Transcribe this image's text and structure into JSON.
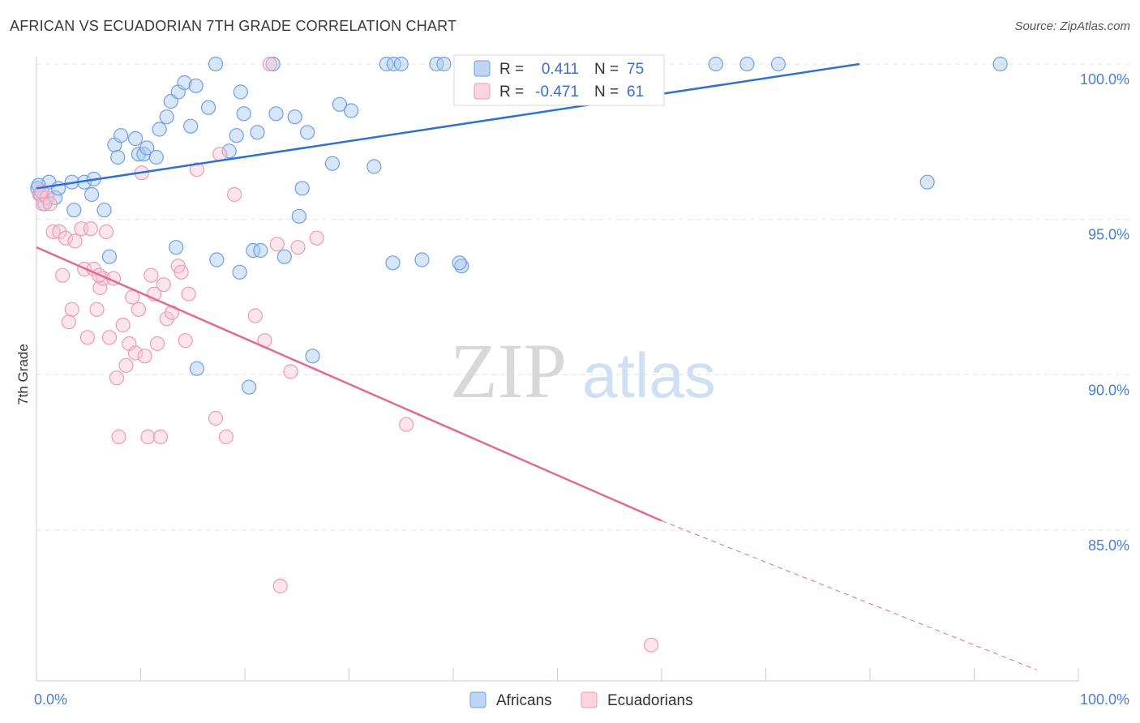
{
  "title": "AFRICAN VS ECUADORIAN 7TH GRADE CORRELATION CHART",
  "source": "Source: ZipAtlas.com",
  "watermark": {
    "zip": "ZIP",
    "atlas": "atlas"
  },
  "chart_data": {
    "type": "scatter",
    "ylabel": "7th Grade",
    "xlim": [
      0,
      100
    ],
    "ylim": [
      80.5,
      100.8
    ],
    "x_ticks": [
      "0.0%",
      "100.0%"
    ],
    "y_ticks": [
      {
        "value": 100,
        "label": "100.0%"
      },
      {
        "value": 95,
        "label": "95.0%"
      },
      {
        "value": 90,
        "label": "90.0%"
      },
      {
        "value": 85,
        "label": "85.0%"
      }
    ],
    "legend": {
      "rows": [
        {
          "r_label": "R =",
          "r_value": "0.411",
          "n_label": "N =",
          "n_value": "75"
        },
        {
          "r_label": "R =",
          "r_value": "-0.471",
          "n_label": "N =",
          "n_value": "61"
        }
      ]
    },
    "series": [
      {
        "name": "Africans",
        "color": "#6f9fe3",
        "line_color": "#2f70d0",
        "trend": {
          "x0": 0,
          "y0": 96.0,
          "x1": 79,
          "y1": 100.0
        },
        "points": [
          [
            0.1,
            96.0
          ],
          [
            0.4,
            95.8
          ],
          [
            0.8,
            95.5
          ],
          [
            1.2,
            96.2
          ],
          [
            1.8,
            95.7
          ],
          [
            2.1,
            96.0
          ],
          [
            3.4,
            96.2
          ],
          [
            3.6,
            95.3
          ],
          [
            4.6,
            96.2
          ],
          [
            5.5,
            96.3
          ],
          [
            5.3,
            95.8
          ],
          [
            6.5,
            95.3
          ],
          [
            7.5,
            97.4
          ],
          [
            7.8,
            97.0
          ],
          [
            8.1,
            97.7
          ],
          [
            9.5,
            97.6
          ],
          [
            9.8,
            97.1
          ],
          [
            10.3,
            97.1
          ],
          [
            10.6,
            97.3
          ],
          [
            11.5,
            97.0
          ],
          [
            11.8,
            97.9
          ],
          [
            12.5,
            98.3
          ],
          [
            12.9,
            98.8
          ],
          [
            13.6,
            99.1
          ],
          [
            14.2,
            99.4
          ],
          [
            14.8,
            98.0
          ],
          [
            15.3,
            99.3
          ],
          [
            16.5,
            98.6
          ],
          [
            17.2,
            100.0
          ],
          [
            18.5,
            97.2
          ],
          [
            19.2,
            97.7
          ],
          [
            19.6,
            99.1
          ],
          [
            19.9,
            98.4
          ],
          [
            21.2,
            97.8
          ],
          [
            22.7,
            100.0
          ],
          [
            23.0,
            98.4
          ],
          [
            24.8,
            98.3
          ],
          [
            25.5,
            96.0
          ],
          [
            26.0,
            97.8
          ],
          [
            28.4,
            96.8
          ],
          [
            29.1,
            98.7
          ],
          [
            30.2,
            98.5
          ],
          [
            32.4,
            96.7
          ],
          [
            33.6,
            100.0
          ],
          [
            34.3,
            100.0
          ],
          [
            35.0,
            100.0
          ],
          [
            38.4,
            100.0
          ],
          [
            39.1,
            100.0
          ],
          [
            42.0,
            100.0
          ],
          [
            47.5,
            100.0
          ],
          [
            50.1,
            100.0
          ],
          [
            51.4,
            100.0
          ],
          [
            57.1,
            100.0
          ],
          [
            59.3,
            100.0
          ],
          [
            65.2,
            100.0
          ],
          [
            68.2,
            100.0
          ],
          [
            71.2,
            100.0
          ],
          [
            92.5,
            100.0
          ],
          [
            85.5,
            96.2
          ],
          [
            7.0,
            93.8
          ],
          [
            13.4,
            94.1
          ],
          [
            17.3,
            93.7
          ],
          [
            20.8,
            94.0
          ],
          [
            21.5,
            94.0
          ],
          [
            23.8,
            93.8
          ],
          [
            25.2,
            95.1
          ],
          [
            34.2,
            93.6
          ],
          [
            40.8,
            93.5
          ],
          [
            37.0,
            93.7
          ],
          [
            40.6,
            93.6
          ],
          [
            26.5,
            90.6
          ],
          [
            15.4,
            90.2
          ],
          [
            20.4,
            89.6
          ],
          [
            19.5,
            93.3
          ],
          [
            0.2,
            96.1
          ]
        ]
      },
      {
        "name": "Ecuadorians",
        "color": "#f2a0b8",
        "line_color": "#e06a95",
        "trend": {
          "x0": 0,
          "y0": 94.1,
          "x1": 60,
          "y1": 85.3
        },
        "trend_dash_to": {
          "x": 96,
          "y": 80.5
        },
        "points": [
          [
            0.3,
            95.8
          ],
          [
            0.6,
            95.5
          ],
          [
            1.0,
            95.7
          ],
          [
            1.6,
            94.6
          ],
          [
            2.2,
            94.6
          ],
          [
            2.5,
            93.2
          ],
          [
            2.8,
            94.4
          ],
          [
            3.1,
            91.7
          ],
          [
            3.4,
            92.1
          ],
          [
            3.7,
            94.3
          ],
          [
            4.3,
            94.7
          ],
          [
            4.6,
            93.4
          ],
          [
            4.9,
            91.2
          ],
          [
            5.2,
            94.7
          ],
          [
            5.5,
            93.4
          ],
          [
            5.8,
            92.1
          ],
          [
            6.1,
            92.8
          ],
          [
            6.4,
            93.1
          ],
          [
            6.7,
            94.6
          ],
          [
            7.0,
            91.2
          ],
          [
            7.4,
            93.1
          ],
          [
            7.7,
            89.9
          ],
          [
            7.9,
            88.0
          ],
          [
            8.3,
            91.6
          ],
          [
            8.6,
            90.3
          ],
          [
            8.9,
            91.0
          ],
          [
            9.2,
            92.5
          ],
          [
            9.5,
            90.7
          ],
          [
            9.8,
            92.1
          ],
          [
            10.1,
            96.5
          ],
          [
            10.4,
            90.6
          ],
          [
            10.7,
            88.0
          ],
          [
            11.0,
            93.2
          ],
          [
            11.3,
            92.6
          ],
          [
            11.6,
            91.0
          ],
          [
            11.9,
            88.0
          ],
          [
            12.2,
            92.9
          ],
          [
            12.5,
            91.8
          ],
          [
            13.0,
            92.0
          ],
          [
            13.6,
            93.5
          ],
          [
            13.9,
            93.3
          ],
          [
            14.3,
            91.1
          ],
          [
            14.6,
            92.6
          ],
          [
            15.4,
            96.6
          ],
          [
            17.2,
            88.6
          ],
          [
            17.6,
            97.1
          ],
          [
            18.2,
            88.0
          ],
          [
            19.0,
            95.8
          ],
          [
            21.0,
            91.9
          ],
          [
            21.9,
            91.1
          ],
          [
            22.4,
            100.0
          ],
          [
            23.1,
            94.2
          ],
          [
            23.4,
            83.2
          ],
          [
            24.4,
            90.1
          ],
          [
            25.1,
            94.1
          ],
          [
            26.9,
            94.4
          ],
          [
            35.5,
            88.4
          ],
          [
            59.0,
            81.3
          ],
          [
            0.5,
            95.9
          ],
          [
            1.3,
            95.5
          ],
          [
            6.0,
            93.2
          ]
        ]
      }
    ],
    "bottom_legend": [
      "Africans",
      "Ecuadorians"
    ]
  }
}
